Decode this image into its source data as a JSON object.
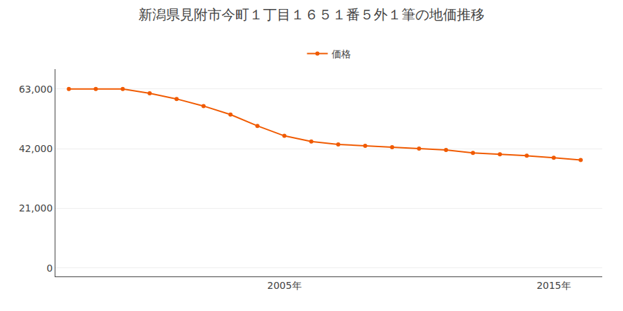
{
  "chart_data": {
    "type": "line",
    "title": "新潟県見附市今町１丁目１６５１番５外１筆の地価推移",
    "x": [
      1997,
      1998,
      1999,
      2000,
      2001,
      2002,
      2003,
      2004,
      2005,
      2006,
      2007,
      2008,
      2009,
      2010,
      2011,
      2012,
      2013,
      2014,
      2015,
      2016
    ],
    "series": [
      {
        "name": "価格",
        "color": "#f05a00",
        "marker": "circle",
        "line_style": "solid",
        "values": [
          63000,
          63000,
          63000,
          61500,
          59500,
          57000,
          54000,
          50000,
          46500,
          44500,
          43500,
          43000,
          42500,
          42000,
          41500,
          40500,
          40000,
          39500,
          38800,
          38000
        ]
      }
    ],
    "xlim": [
      1996.5,
      2016.8
    ],
    "xticks": [
      {
        "value": 2005,
        "label": "2005年"
      },
      {
        "value": 2015,
        "label": "2015年"
      }
    ],
    "ylim": [
      -3000,
      70000
    ],
    "yticks": [
      0,
      {
        "value": 21000,
        "label": "21,000"
      },
      {
        "value": 42000,
        "label": "42,000"
      },
      {
        "value": 63000,
        "label": "63,000"
      }
    ],
    "grid": "y",
    "legend": "top"
  }
}
